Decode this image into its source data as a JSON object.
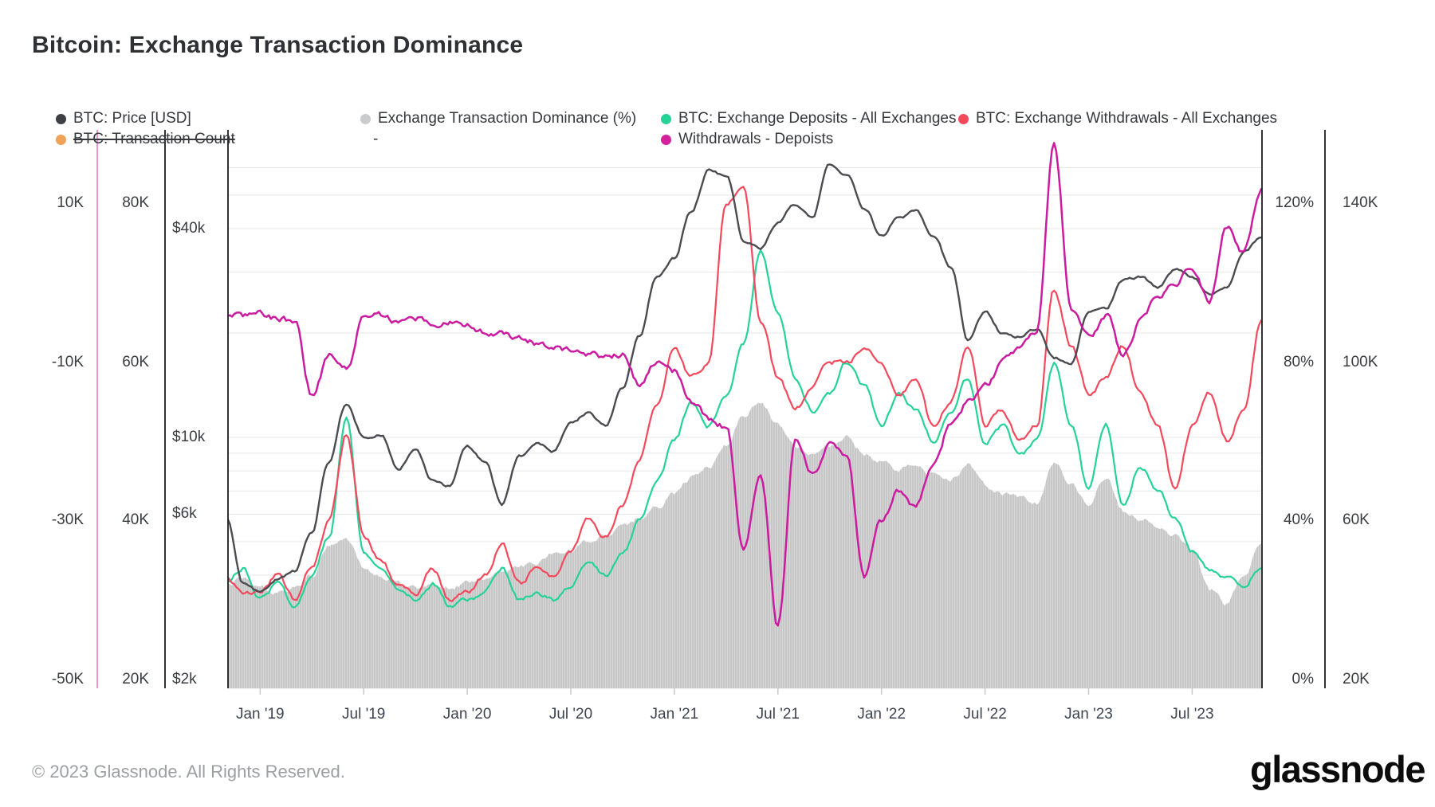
{
  "title": "Bitcoin: Exchange Transaction Dominance",
  "footer": {
    "copyright": "© 2023 Glassnode. All Rights Reserved.",
    "brand": "glassnode"
  },
  "colors": {
    "price": "#4b4c51",
    "dominance_fill": "#c7c7c7",
    "dominance_dot": "#c9cbcd",
    "deposits": "#25d397",
    "withdrawals": "#f4495c",
    "delta": "#cb1ba0",
    "delta_axis_line": "#f173c4",
    "transaction_count": "#f0a259",
    "axis_line": "#1c1d1f",
    "gridline": "#e7e7e7",
    "tick": "#c9c9c9"
  },
  "legend": {
    "rows": [
      [
        {
          "label": "BTC: Price [USD]",
          "dot": "#3f4045",
          "disabled": false
        },
        {
          "label": "Exchange Transaction Dominance (%)",
          "dot": "#c9cbcd",
          "disabled": false
        },
        {
          "label": "BTC: Exchange Deposits - All Exchanges",
          "dot": "#25d397",
          "disabled": false
        },
        {
          "label": "BTC: Exchange Withdrawals - All Exchanges",
          "dot": "#f4495c",
          "disabled": false
        }
      ],
      [
        {
          "label": "BTC: Transaction Count",
          "dot": "#f0a259",
          "disabled": true
        },
        {
          "label": "-",
          "dot": null,
          "disabled": false
        },
        {
          "label": "Withdrawals - Depoists",
          "dot": "#d6219c",
          "disabled": false
        }
      ]
    ]
  },
  "axes": {
    "left_delta_labels": [
      "10K",
      "-10K",
      "-30K",
      "-50K"
    ],
    "left_count_labels": [
      "80K",
      "60K",
      "40K",
      "20K"
    ],
    "price_labels": [
      "$40k",
      "$10k",
      "$6k",
      "$2k"
    ],
    "right_pct_labels": [
      "120%",
      "80%",
      "40%",
      "0%"
    ],
    "right_count_labels": [
      "140K",
      "100K",
      "60K",
      "20K"
    ]
  },
  "chart_data": {
    "type": "line",
    "title": "Bitcoin: Exchange Transaction Dominance",
    "start_month": "2018-11",
    "months_per_point": 1,
    "x_tick_labels": [
      "Jan '19",
      "Jul '19",
      "Jan '20",
      "Jul '20",
      "Jan '21",
      "Jul '21",
      "Jan '22",
      "Jul '22",
      "Jan '23",
      "Jul '23"
    ],
    "axis_ranges": {
      "delta_k": [
        -50,
        10
      ],
      "count_k": [
        20,
        80
      ],
      "price_usd_log": [
        2000,
        70000
      ],
      "percent": [
        0,
        120
      ],
      "right_count_k": [
        20,
        140
      ]
    },
    "legend_position": "top",
    "grid": "horizontal-log-price",
    "series": [
      {
        "name": "BTC: Price [USD]",
        "axis": "price_usd_log",
        "color": "#4b4c51",
        "style": "line",
        "values_k_usd": [
          5.9,
          3.8,
          3.6,
          3.9,
          4.1,
          5.3,
          8.5,
          12.5,
          10.0,
          10.2,
          8.1,
          9.2,
          7.5,
          7.2,
          9.4,
          8.6,
          6.4,
          8.8,
          9.7,
          9.1,
          11.0,
          11.7,
          10.8,
          13.8,
          19.7,
          29.0,
          33,
          45,
          59,
          57,
          37,
          35,
          42,
          47,
          43,
          61,
          57,
          46,
          38,
          43,
          45,
          38,
          31,
          19,
          23,
          20,
          19.5,
          20.5,
          17,
          16.5,
          23,
          23.5,
          28.5,
          29,
          27,
          30.5,
          29,
          26,
          27,
          34.5,
          37.5
        ]
      },
      {
        "name": "Exchange Transaction Dominance (%)",
        "axis": "percent",
        "color": "#c7c7c7",
        "style": "area",
        "values_pct": [
          26,
          27,
          25,
          24,
          25,
          28,
          35,
          37,
          30,
          28,
          26,
          25,
          26,
          25,
          26,
          27,
          29,
          30,
          31,
          33,
          34,
          36,
          38,
          40,
          42,
          45,
          48,
          52,
          55,
          60,
          68,
          71,
          65,
          60,
          58,
          60,
          62,
          58,
          56,
          54,
          55,
          53,
          52,
          55,
          50,
          48,
          47,
          46,
          56,
          50,
          46,
          52,
          44,
          42,
          40,
          38,
          34,
          24,
          21,
          28,
          36
        ]
      },
      {
        "name": "BTC: Exchange Deposits - All Exchanges",
        "axis": "count_k",
        "color": "#25d397",
        "style": "line",
        "values_k": [
          32,
          34,
          30,
          32,
          29,
          33,
          38,
          53,
          36,
          34,
          31,
          30,
          32,
          29,
          30,
          31,
          34,
          30,
          31,
          30,
          32,
          35,
          33,
          36,
          40,
          45,
          50,
          55,
          52,
          56,
          62,
          74,
          66,
          58,
          54,
          56,
          60,
          57,
          52,
          56,
          54,
          50,
          54,
          58,
          50,
          52,
          48,
          50,
          60,
          52,
          44,
          52,
          42,
          47,
          44,
          40,
          36,
          34,
          33,
          32,
          34
        ]
      },
      {
        "name": "BTC: Exchange Withdrawals - All Exchanges",
        "axis": "count_k",
        "color": "#f4495c",
        "style": "line",
        "values_k": [
          33,
          31,
          31,
          33,
          30,
          34,
          40,
          51,
          38,
          35,
          32,
          31,
          34,
          30,
          31,
          33,
          37,
          32,
          34,
          33,
          36,
          40,
          38,
          42,
          48,
          55,
          62,
          58,
          60,
          80,
          82,
          65,
          58,
          54,
          57,
          60,
          60,
          62,
          60,
          56,
          58,
          52,
          55,
          62,
          52,
          54,
          50,
          52,
          69,
          62,
          56,
          58,
          62,
          56,
          52,
          44,
          52,
          56,
          50,
          54,
          65
        ]
      },
      {
        "name": "Withdrawals - Depoists",
        "axis": "delta_k",
        "color": "#cb1ba0",
        "style": "line",
        "values_k": [
          -4,
          -4.2,
          -4.0,
          -4.5,
          -4.8,
          -14,
          -9,
          -11,
          -4.5,
          -4.2,
          -4.8,
          -4.5,
          -5.5,
          -5.0,
          -5.5,
          -6.0,
          -6.5,
          -7.0,
          -7.5,
          -8.0,
          -8.5,
          -9.0,
          -9.5,
          -9.0,
          -13,
          -10,
          -11,
          -15,
          -17,
          -18,
          -33,
          -24,
          -43,
          -20,
          -24,
          -20,
          -22,
          -37,
          -30,
          -26,
          -28,
          -23,
          -18,
          -15,
          -13,
          -10,
          -8,
          -6,
          17,
          -3,
          -7,
          -4,
          -9,
          -5,
          -2,
          0,
          2,
          -2,
          7,
          4,
          12
        ]
      },
      {
        "name": "BTC: Transaction Count",
        "axis": "right_count_k",
        "color": "#f0a259",
        "style": "line",
        "disabled": true,
        "values": []
      }
    ]
  }
}
